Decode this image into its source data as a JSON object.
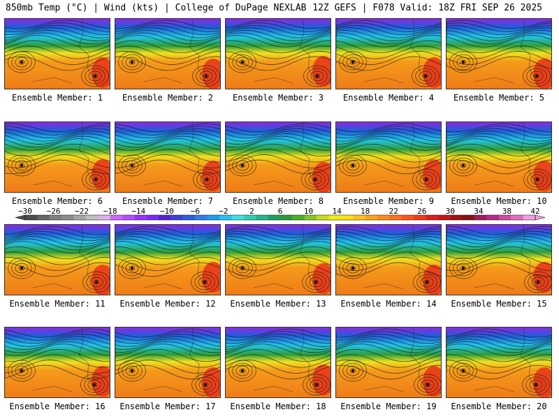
{
  "header": {
    "left": "850mb Temp (°C) | Wind (kts) | College of DuPage NEXLAB",
    "right": "12Z GEFS | F078 Valid: 18Z FRI SEP 26 2025"
  },
  "panel_prefix": "Ensemble Member:",
  "members": [
    1,
    2,
    3,
    4,
    5,
    6,
    7,
    8,
    9,
    10,
    11,
    12,
    13,
    14,
    15,
    16,
    17,
    18,
    19,
    20
  ],
  "colorbar": {
    "ticks": [
      "-30",
      "-26",
      "-22",
      "-18",
      "-14",
      "-10",
      "-6",
      "-2",
      "2",
      "6",
      "10",
      "14",
      "18",
      "22",
      "26",
      "30",
      "34",
      "38",
      "42"
    ],
    "colors": [
      "#4d4d4d",
      "#666666",
      "#808080",
      "#8c8c8c",
      "#a6a6a6",
      "#bfbfbf",
      "#d9b3e6",
      "#cc66ff",
      "#b84dff",
      "#9933ff",
      "#7a2bff",
      "#5a1fd9",
      "#3f3fd9",
      "#2f5fe0",
      "#2f80f0",
      "#1e9ff2",
      "#22c4f2",
      "#3fe0e0",
      "#2ed1b0",
      "#1fb88a",
      "#1fa060",
      "#2d9a3a",
      "#4fae2a",
      "#88c728",
      "#c7dd1c",
      "#eeee11",
      "#ffe014",
      "#ffc21a",
      "#ffa31a",
      "#ff8a1a",
      "#ff701a",
      "#ff551a",
      "#f23a1a",
      "#dd1f1f",
      "#c41717",
      "#a31212",
      "#8a1010",
      "#9e1f5a",
      "#b82a8a",
      "#d24aa6",
      "#e06ec4",
      "#f0a0e0"
    ]
  },
  "colors": {
    "cold_top": "#8a2be2",
    "cold_mid": "#1e5fd9",
    "cyan": "#22c4e6",
    "green": "#2f9e3a",
    "yellow": "#f0e020",
    "orange": "#f59b1a",
    "warm": "#ee7a18",
    "hot": "#e8341a"
  }
}
